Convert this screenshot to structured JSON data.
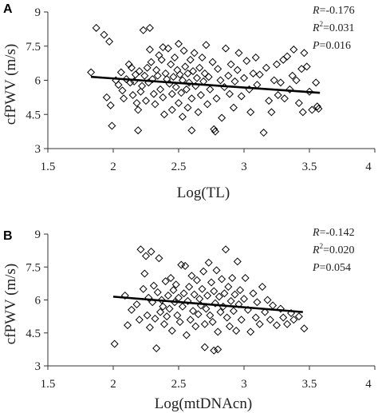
{
  "chart_data": [
    {
      "type": "scatter",
      "panel_label": "A",
      "title": "",
      "xlabel": "Log(TL)",
      "ylabel": "cfPWV (m/s)",
      "xlim": [
        1.5,
        4
      ],
      "ylim": [
        3,
        9
      ],
      "x_ticks": [
        "1.5",
        "2",
        "2.5",
        "3",
        "3.5",
        "4"
      ],
      "y_ticks": [
        "3",
        "4.5",
        "6",
        "7.5",
        "9"
      ],
      "grid": false,
      "marker": "diamond",
      "stats": {
        "r": "-0.176",
        "r2": "0.031",
        "p": "0.016"
      },
      "trendline": {
        "x": [
          1.83,
          3.58
        ],
        "y": [
          6.15,
          5.45
        ]
      },
      "points": [
        [
          1.87,
          8.3
        ],
        [
          1.93,
          8.0
        ],
        [
          1.97,
          7.7
        ],
        [
          1.83,
          6.35
        ],
        [
          1.95,
          5.25
        ],
        [
          1.98,
          4.9
        ],
        [
          1.99,
          4.0
        ],
        [
          2.02,
          6.0
        ],
        [
          2.04,
          5.8
        ],
        [
          2.06,
          6.35
        ],
        [
          2.07,
          5.55
        ],
        [
          2.08,
          5.2
        ],
        [
          2.1,
          6.05
        ],
        [
          2.12,
          6.7
        ],
        [
          2.13,
          5.9
        ],
        [
          2.14,
          6.55
        ],
        [
          2.15,
          5.35
        ],
        [
          2.16,
          5.95
        ],
        [
          2.17,
          6.25
        ],
        [
          2.18,
          5.0
        ],
        [
          2.19,
          4.7
        ],
        [
          2.19,
          3.8
        ],
        [
          2.2,
          6.4
        ],
        [
          2.21,
          5.5
        ],
        [
          2.22,
          5.75
        ],
        [
          2.23,
          8.2
        ],
        [
          2.24,
          6.2
        ],
        [
          2.25,
          5.1
        ],
        [
          2.26,
          6.55
        ],
        [
          2.27,
          5.9
        ],
        [
          2.28,
          8.3
        ],
        [
          2.28,
          7.35
        ],
        [
          2.29,
          6.8
        ],
        [
          2.3,
          6.05
        ],
        [
          2.31,
          5.4
        ],
        [
          2.32,
          4.95
        ],
        [
          2.33,
          6.45
        ],
        [
          2.34,
          6.2
        ],
        [
          2.35,
          7.1
        ],
        [
          2.36,
          5.6
        ],
        [
          2.37,
          6.9
        ],
        [
          2.38,
          7.45
        ],
        [
          2.38,
          5.25
        ],
        [
          2.39,
          4.5
        ],
        [
          2.4,
          6.3
        ],
        [
          2.41,
          6.05
        ],
        [
          2.42,
          7.4
        ],
        [
          2.43,
          5.85
        ],
        [
          2.44,
          6.7
        ],
        [
          2.45,
          4.7
        ],
        [
          2.45,
          5.4
        ],
        [
          2.46,
          6.15
        ],
        [
          2.47,
          7.0
        ],
        [
          2.48,
          5.7
        ],
        [
          2.49,
          6.45
        ],
        [
          2.5,
          5.0
        ],
        [
          2.5,
          7.6
        ],
        [
          2.51,
          6.25
        ],
        [
          2.52,
          5.45
        ],
        [
          2.53,
          6.0
        ],
        [
          2.53,
          4.4
        ],
        [
          2.54,
          7.3
        ],
        [
          2.55,
          6.6
        ],
        [
          2.56,
          5.6
        ],
        [
          2.57,
          6.3
        ],
        [
          2.57,
          4.8
        ],
        [
          2.58,
          5.9
        ],
        [
          2.59,
          6.9
        ],
        [
          2.6,
          5.2
        ],
        [
          2.6,
          3.8
        ],
        [
          2.61,
          6.4
        ],
        [
          2.62,
          7.2
        ],
        [
          2.63,
          5.75
        ],
        [
          2.64,
          6.1
        ],
        [
          2.65,
          4.6
        ],
        [
          2.66,
          6.55
        ],
        [
          2.67,
          5.35
        ],
        [
          2.68,
          7.0
        ],
        [
          2.69,
          5.95
        ],
        [
          2.7,
          6.3
        ],
        [
          2.71,
          7.55
        ],
        [
          2.72,
          4.95
        ],
        [
          2.73,
          6.15
        ],
        [
          2.74,
          5.6
        ],
        [
          2.76,
          6.8
        ],
        [
          2.77,
          3.85
        ],
        [
          2.78,
          3.75
        ],
        [
          2.79,
          5.2
        ],
        [
          2.8,
          6.5
        ],
        [
          2.82,
          6.0
        ],
        [
          2.83,
          4.35
        ],
        [
          2.85,
          5.7
        ],
        [
          2.86,
          7.4
        ],
        [
          2.88,
          6.2
        ],
        [
          2.89,
          5.4
        ],
        [
          2.9,
          6.7
        ],
        [
          2.92,
          4.8
        ],
        [
          2.93,
          5.95
        ],
        [
          2.95,
          6.45
        ],
        [
          2.96,
          7.2
        ],
        [
          2.98,
          5.3
        ],
        [
          3.0,
          6.1
        ],
        [
          3.02,
          6.85
        ],
        [
          3.04,
          5.6
        ],
        [
          3.05,
          4.6
        ],
        [
          3.07,
          6.3
        ],
        [
          3.09,
          7.0
        ],
        [
          3.1,
          5.8
        ],
        [
          3.12,
          6.25
        ],
        [
          3.15,
          3.7
        ],
        [
          3.17,
          6.55
        ],
        [
          3.19,
          5.1
        ],
        [
          3.21,
          4.6
        ],
        [
          3.23,
          6.0
        ],
        [
          3.25,
          6.7
        ],
        [
          3.26,
          5.35
        ],
        [
          3.28,
          5.9
        ],
        [
          3.3,
          6.9
        ],
        [
          3.31,
          5.2
        ],
        [
          3.33,
          7.05
        ],
        [
          3.35,
          5.6
        ],
        [
          3.37,
          6.2
        ],
        [
          3.38,
          7.35
        ],
        [
          3.4,
          6.0
        ],
        [
          3.42,
          5.0
        ],
        [
          3.44,
          6.5
        ],
        [
          3.45,
          4.6
        ],
        [
          3.46,
          7.2
        ],
        [
          3.48,
          6.6
        ],
        [
          3.5,
          5.5
        ],
        [
          3.52,
          4.7
        ],
        [
          3.55,
          5.9
        ],
        [
          3.56,
          4.85
        ],
        [
          3.57,
          4.75
        ]
      ]
    },
    {
      "type": "scatter",
      "panel_label": "B",
      "title": "",
      "xlabel": "Log(mtDNAcn)",
      "ylabel": "cfPWV (m/s)",
      "xlim": [
        1.5,
        4
      ],
      "ylim": [
        3,
        9
      ],
      "x_ticks": [
        "1.5",
        "2",
        "2.5",
        "3",
        "3.5",
        "4"
      ],
      "y_ticks": [
        "3",
        "4.5",
        "6",
        "7.5",
        "9"
      ],
      "grid": false,
      "marker": "diamond",
      "stats": {
        "r": "-0.142",
        "r2": "0.020",
        "p": "0.054"
      },
      "trendline": {
        "x": [
          2.0,
          3.45
        ],
        "y": [
          6.15,
          5.45
        ]
      },
      "points": [
        [
          2.01,
          4.0
        ],
        [
          2.09,
          6.2
        ],
        [
          2.11,
          4.85
        ],
        [
          2.14,
          5.55
        ],
        [
          2.18,
          5.8
        ],
        [
          2.2,
          5.1
        ],
        [
          2.21,
          8.3
        ],
        [
          2.23,
          6.5
        ],
        [
          2.24,
          7.2
        ],
        [
          2.25,
          8.0
        ],
        [
          2.26,
          5.3
        ],
        [
          2.27,
          6.1
        ],
        [
          2.28,
          4.75
        ],
        [
          2.29,
          8.2
        ],
        [
          2.3,
          5.9
        ],
        [
          2.31,
          6.65
        ],
        [
          2.32,
          5.15
        ],
        [
          2.33,
          3.8
        ],
        [
          2.34,
          6.35
        ],
        [
          2.35,
          7.9
        ],
        [
          2.36,
          5.45
        ],
        [
          2.37,
          6.0
        ],
        [
          2.38,
          5.7
        ],
        [
          2.39,
          4.9
        ],
        [
          2.4,
          6.85
        ],
        [
          2.41,
          5.25
        ],
        [
          2.42,
          6.2
        ],
        [
          2.43,
          5.6
        ],
        [
          2.44,
          7.0
        ],
        [
          2.45,
          4.6
        ],
        [
          2.46,
          6.45
        ],
        [
          2.47,
          5.9
        ],
        [
          2.48,
          6.7
        ],
        [
          2.49,
          5.3
        ],
        [
          2.5,
          6.1
        ],
        [
          2.51,
          5.0
        ],
        [
          2.52,
          7.6
        ],
        [
          2.53,
          5.7
        ],
        [
          2.54,
          6.3
        ],
        [
          2.55,
          7.55
        ],
        [
          2.56,
          4.4
        ],
        [
          2.57,
          5.95
        ],
        [
          2.58,
          6.6
        ],
        [
          2.59,
          5.1
        ],
        [
          2.6,
          7.1
        ],
        [
          2.61,
          5.5
        ],
        [
          2.62,
          6.25
        ],
        [
          2.63,
          4.8
        ],
        [
          2.64,
          6.9
        ],
        [
          2.65,
          5.35
        ],
        [
          2.66,
          6.05
        ],
        [
          2.67,
          5.75
        ],
        [
          2.68,
          6.5
        ],
        [
          2.69,
          7.3
        ],
        [
          2.7,
          4.9
        ],
        [
          2.7,
          3.85
        ],
        [
          2.71,
          5.6
        ],
        [
          2.72,
          6.2
        ],
        [
          2.73,
          7.7
        ],
        [
          2.74,
          5.3
        ],
        [
          2.75,
          6.8
        ],
        [
          2.76,
          5.0
        ],
        [
          2.77,
          6.4
        ],
        [
          2.77,
          3.7
        ],
        [
          2.78,
          5.85
        ],
        [
          2.79,
          7.35
        ],
        [
          2.8,
          4.55
        ],
        [
          2.8,
          3.75
        ],
        [
          2.81,
          6.15
        ],
        [
          2.82,
          5.45
        ],
        [
          2.83,
          6.95
        ],
        [
          2.84,
          5.7
        ],
        [
          2.85,
          6.3
        ],
        [
          2.86,
          8.3
        ],
        [
          2.87,
          5.2
        ],
        [
          2.88,
          6.6
        ],
        [
          2.89,
          4.8
        ],
        [
          2.9,
          5.95
        ],
        [
          2.91,
          7.0
        ],
        [
          2.92,
          5.5
        ],
        [
          2.93,
          6.25
        ],
        [
          2.94,
          4.6
        ],
        [
          2.95,
          7.75
        ],
        [
          2.96,
          5.8
        ],
        [
          2.97,
          6.45
        ],
        [
          2.98,
          5.1
        ],
        [
          3.0,
          6.05
        ],
        [
          3.01,
          7.0
        ],
        [
          3.03,
          5.55
        ],
        [
          3.05,
          4.55
        ],
        [
          3.07,
          6.3
        ],
        [
          3.09,
          5.2
        ],
        [
          3.1,
          5.9
        ],
        [
          3.12,
          4.9
        ],
        [
          3.14,
          6.6
        ],
        [
          3.16,
          5.45
        ],
        [
          3.18,
          6.0
        ],
        [
          3.2,
          5.1
        ],
        [
          3.22,
          5.75
        ],
        [
          3.25,
          4.85
        ],
        [
          3.28,
          5.6
        ],
        [
          3.3,
          5.2
        ],
        [
          3.33,
          4.9
        ],
        [
          3.36,
          5.4
        ],
        [
          3.38,
          5.1
        ],
        [
          3.42,
          5.25
        ],
        [
          3.46,
          4.7
        ]
      ]
    }
  ]
}
